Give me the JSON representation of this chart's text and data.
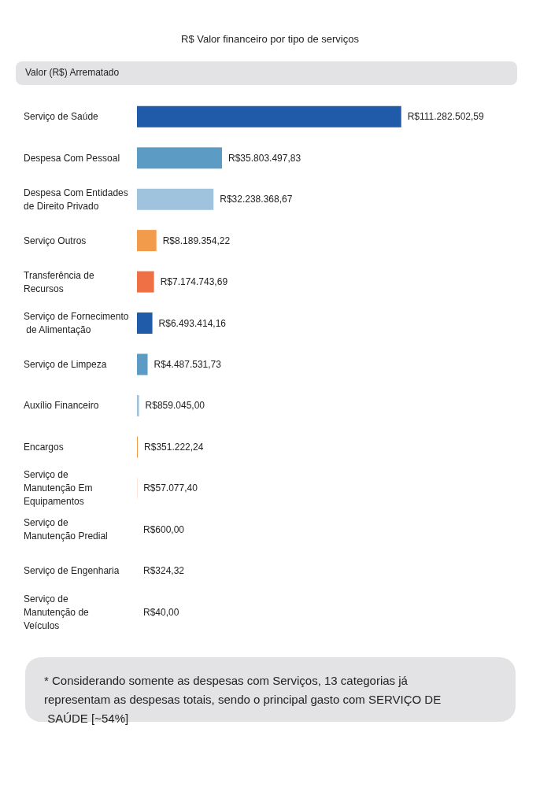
{
  "chart_data": {
    "type": "bar",
    "orientation": "horizontal",
    "title": "R$ Valor financeiro por tipo de serviços",
    "subtitle": "Valor (R$) Arrematado",
    "categories": [
      "Serviço de Saúde",
      "Despesa Com Pessoal",
      "Despesa Com Entidades de Direito Privado",
      "Serviço Outros",
      "Transferência de Recursos",
      "Serviço de Fornecimento de Alimentação",
      "Serviço de Limpeza",
      "Auxílio Financeiro",
      "Encargos",
      "Serviço de Manutenção Em Equipamentos",
      "Serviço de Manutenção Predial",
      "Serviço de Engenharia",
      "Serviço de Manutenção de Veículos"
    ],
    "values": [
      111282502.59,
      35803497.83,
      32238368.67,
      8189354.22,
      7174743.69,
      6493414.16,
      4487531.73,
      859045.0,
      351222.24,
      57077.4,
      600.0,
      324.32,
      40.0
    ],
    "value_labels": [
      "R$111.282.502,59",
      "R$35.803.497,83",
      "R$32.238.368,67",
      "R$8.189.354,22",
      "R$7.174.743,69",
      "R$6.493.414,16",
      "R$4.487.531,73",
      "R$859.045,00",
      "R$351.222,24",
      "R$57.077,40",
      "R$600,00",
      "R$324,32",
      "R$40,00"
    ],
    "colors": [
      "#1f5ba8",
      "#5b9bc4",
      "#9fc3dc",
      "#f29b4a",
      "#ee7044",
      "#1f5ba8",
      "#5b9bc4",
      "#9fc3dc",
      "#f29b4a",
      "#ee7044",
      "#1f5ba8",
      "#5b9bc4",
      "#9fc3dc"
    ],
    "annotations": [
      "* Considerando somente as despesas com Serviços, 13 categorias já representam as despesas totais, sendo o principal gasto com SERVIÇO DE SAÚDE [~54%]"
    ]
  }
}
